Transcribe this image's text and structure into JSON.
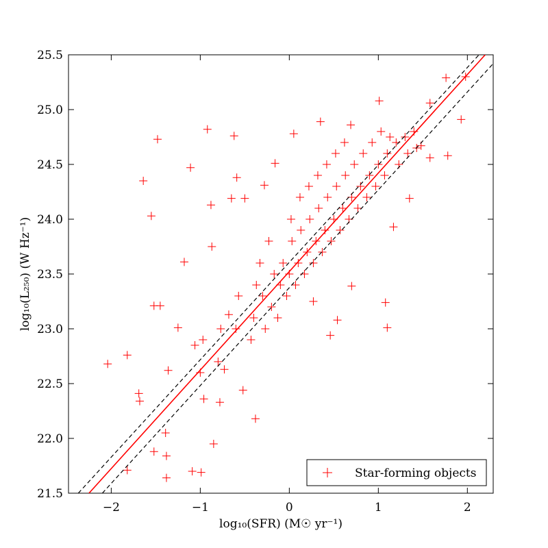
{
  "chart_data": {
    "type": "scatter",
    "xlabel": "log₁₀(SFR) (M☉ yr⁻¹)",
    "ylabel": "log₁₀(L₂₅₀) (W Hz⁻¹)",
    "xlim": [
      -2.48,
      2.29
    ],
    "ylim": [
      21.5,
      25.5
    ],
    "xticks": [
      {
        "value": -2,
        "label": "−2"
      },
      {
        "value": -1,
        "label": "−1"
      },
      0,
      1,
      2
    ],
    "yticks": [
      21.5,
      {
        "value": 22,
        "label": "22.0"
      },
      22.5,
      {
        "value": 23,
        "label": "23.0"
      },
      23.5,
      {
        "value": 24,
        "label": "24.0"
      },
      24.5,
      {
        "value": 25,
        "label": "25.0"
      },
      25.5
    ],
    "legend": "lower right",
    "series": [
      {
        "name": "Star-forming objects",
        "color": "#ff0000",
        "marker": "plus",
        "x": [
          -2.04,
          -1.82,
          -1.48,
          -1.64,
          -1.55,
          -1.11,
          -0.92,
          -0.62,
          -0.59,
          -1.18,
          -1.38,
          -1.38,
          -1.09,
          -0.99,
          -1.52,
          -1.82,
          -1.69,
          -1.68,
          -1.39,
          -0.85,
          -0.38,
          1.08,
          1.1,
          1.01,
          1.76,
          1.93,
          1.98,
          1.58,
          0.46,
          -1.45,
          -1.52,
          -1.25,
          -1.06,
          -1.36,
          -0.96,
          -0.78,
          -0.73,
          -0.52,
          -0.68,
          -0.87,
          -0.88,
          -0.65,
          -0.5,
          -0.28,
          -0.16,
          0.05,
          0.35,
          0.69,
          1.48,
          1.78,
          1.58,
          1.17,
          1.35,
          0.7,
          0.54,
          0.27,
          -0.4,
          -0.37,
          -0.43,
          -0.3,
          -0.27,
          -0.33,
          -0.2,
          -0.17,
          -0.23,
          -0.1,
          -0.07,
          -0.13,
          0,
          0.03,
          -0.03,
          0.02,
          0.1,
          0.13,
          0.07,
          0.12,
          0.2,
          0.23,
          0.17,
          0.22,
          0.3,
          0.33,
          0.27,
          0.32,
          0.4,
          0.43,
          0.37,
          0.42,
          0.5,
          0.53,
          0.47,
          0.52,
          0.6,
          0.63,
          0.57,
          0.62,
          0.7,
          0.73,
          0.67,
          0.8,
          0.83,
          0.77,
          0.9,
          0.93,
          0.87,
          1,
          1.03,
          0.97,
          1.1,
          1.13,
          1.07,
          1.2,
          1.23,
          1.3,
          1.33,
          1.4,
          1.43,
          -0.6,
          -0.57,
          -0.8,
          -0.77,
          -1,
          -0.97
        ],
        "y": [
          22.68,
          22.76,
          24.73,
          24.35,
          24.03,
          24.47,
          24.82,
          24.76,
          24.38,
          23.61,
          21.84,
          21.64,
          21.7,
          21.69,
          21.88,
          21.71,
          22.41,
          22.34,
          22.05,
          21.95,
          22.18,
          23.24,
          23.01,
          25.08,
          25.29,
          24.91,
          25.3,
          25.06,
          22.94,
          23.21,
          23.21,
          23.01,
          22.85,
          22.62,
          22.36,
          22.33,
          22.63,
          22.44,
          23.13,
          23.75,
          24.13,
          24.19,
          24.19,
          24.31,
          24.51,
          24.78,
          24.89,
          24.86,
          24.67,
          24.58,
          24.56,
          23.93,
          24.19,
          23.39,
          23.08,
          23.25,
          23.1,
          23.4,
          22.9,
          23.3,
          23,
          23.6,
          23.2,
          23.5,
          23.8,
          23.4,
          23.6,
          23.1,
          23.5,
          23.8,
          23.3,
          24,
          23.6,
          23.9,
          23.4,
          24.2,
          23.7,
          24,
          23.5,
          24.3,
          23.8,
          24.1,
          23.6,
          24.4,
          23.9,
          24.2,
          23.7,
          24.5,
          24,
          24.3,
          23.8,
          24.6,
          24.1,
          24.4,
          23.9,
          24.7,
          24.2,
          24.5,
          24,
          24.3,
          24.6,
          24.1,
          24.4,
          24.7,
          24.2,
          24.5,
          24.8,
          24.3,
          24.6,
          24.75,
          24.4,
          24.7,
          24.5,
          24.75,
          24.6,
          24.8,
          24.65,
          23,
          23.3,
          22.7,
          23,
          22.6,
          22.9
        ]
      }
    ],
    "lines": [
      {
        "x": [
          -2.37,
          2.13
        ],
        "y": [
          21.5,
          25.5
        ],
        "color": "#000000",
        "style": "dashed"
      },
      {
        "x": [
          -2.1,
          2.29
        ],
        "y": [
          21.5,
          25.42
        ],
        "color": "#000000",
        "style": "dashed"
      },
      {
        "x": [
          -2.25,
          2.2
        ],
        "y": [
          21.5,
          25.5
        ],
        "color": "#ff0000",
        "style": "solid"
      }
    ]
  }
}
